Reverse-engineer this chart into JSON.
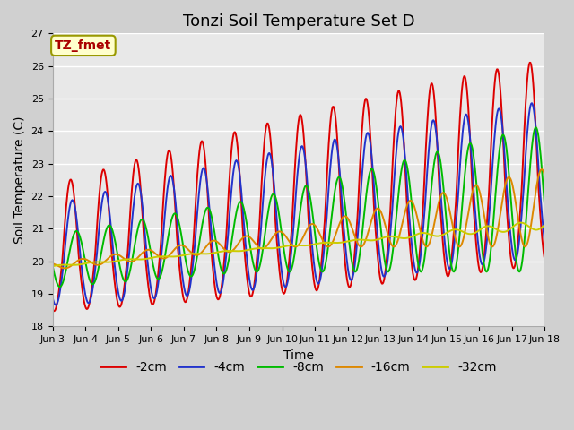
{
  "title": "Tonzi Soil Temperature Set D",
  "xlabel": "Time",
  "ylabel": "Soil Temperature (C)",
  "ylim": [
    18.0,
    27.0
  ],
  "yticks": [
    18.0,
    19.0,
    20.0,
    21.0,
    22.0,
    23.0,
    24.0,
    25.0,
    26.0,
    27.0
  ],
  "xtick_labels": [
    "Jun 3",
    "Jun 4",
    "Jun 5",
    "Jun 6",
    "Jun 7",
    "Jun 8",
    "Jun 9",
    "Jun 10",
    "Jun 11",
    "Jun 12",
    "Jun 13",
    "Jun 14",
    "Jun 15",
    "Jun 16",
    "Jun 17",
    "Jun 18"
  ],
  "annotation_text": "TZ_fmet",
  "annotation_color": "#aa0000",
  "annotation_bg": "#ffffcc",
  "annotation_border": "#999900",
  "series_colors": [
    "#dd0000",
    "#2233cc",
    "#00bb00",
    "#dd8800",
    "#cccc00"
  ],
  "series_labels": [
    "-2cm",
    "-4cm",
    "-8cm",
    "-16cm",
    "-32cm"
  ],
  "fig_bg": "#d0d0d0",
  "plot_bg": "#e8e8e8",
  "grid_color": "#ffffff",
  "title_fontsize": 13,
  "axis_label_fontsize": 10,
  "tick_fontsize": 8,
  "legend_fontsize": 10,
  "line_width": 1.4
}
